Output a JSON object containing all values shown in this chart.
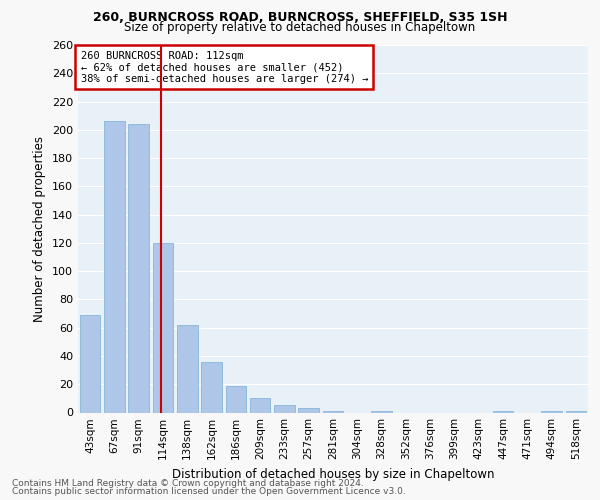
{
  "title1": "260, BURNCROSS ROAD, BURNCROSS, SHEFFIELD, S35 1SH",
  "title2": "Size of property relative to detached houses in Chapeltown",
  "xlabel": "Distribution of detached houses by size in Chapeltown",
  "ylabel": "Number of detached properties",
  "categories": [
    "43sqm",
    "67sqm",
    "91sqm",
    "114sqm",
    "138sqm",
    "162sqm",
    "186sqm",
    "209sqm",
    "233sqm",
    "257sqm",
    "281sqm",
    "304sqm",
    "328sqm",
    "352sqm",
    "376sqm",
    "399sqm",
    "423sqm",
    "447sqm",
    "471sqm",
    "494sqm",
    "518sqm"
  ],
  "values": [
    69,
    206,
    204,
    120,
    62,
    36,
    19,
    10,
    5,
    3,
    1,
    0,
    1,
    0,
    0,
    0,
    0,
    1,
    0,
    1,
    1
  ],
  "bar_color": "#aec6e8",
  "bar_edge_color": "#7aafd4",
  "vline_color": "#cc0000",
  "annotation_title": "260 BURNCROSS ROAD: 112sqm",
  "annotation_line2": "← 62% of detached houses are smaller (452)",
  "annotation_line3": "38% of semi-detached houses are larger (274) →",
  "annotation_box_color": "#cc0000",
  "ylim": [
    0,
    260
  ],
  "yticks": [
    0,
    20,
    40,
    60,
    80,
    100,
    120,
    140,
    160,
    180,
    200,
    220,
    240,
    260
  ],
  "background_color": "#e8f0f8",
  "grid_color": "#ffffff",
  "footer1": "Contains HM Land Registry data © Crown copyright and database right 2024.",
  "footer2": "Contains public sector information licensed under the Open Government Licence v3.0."
}
